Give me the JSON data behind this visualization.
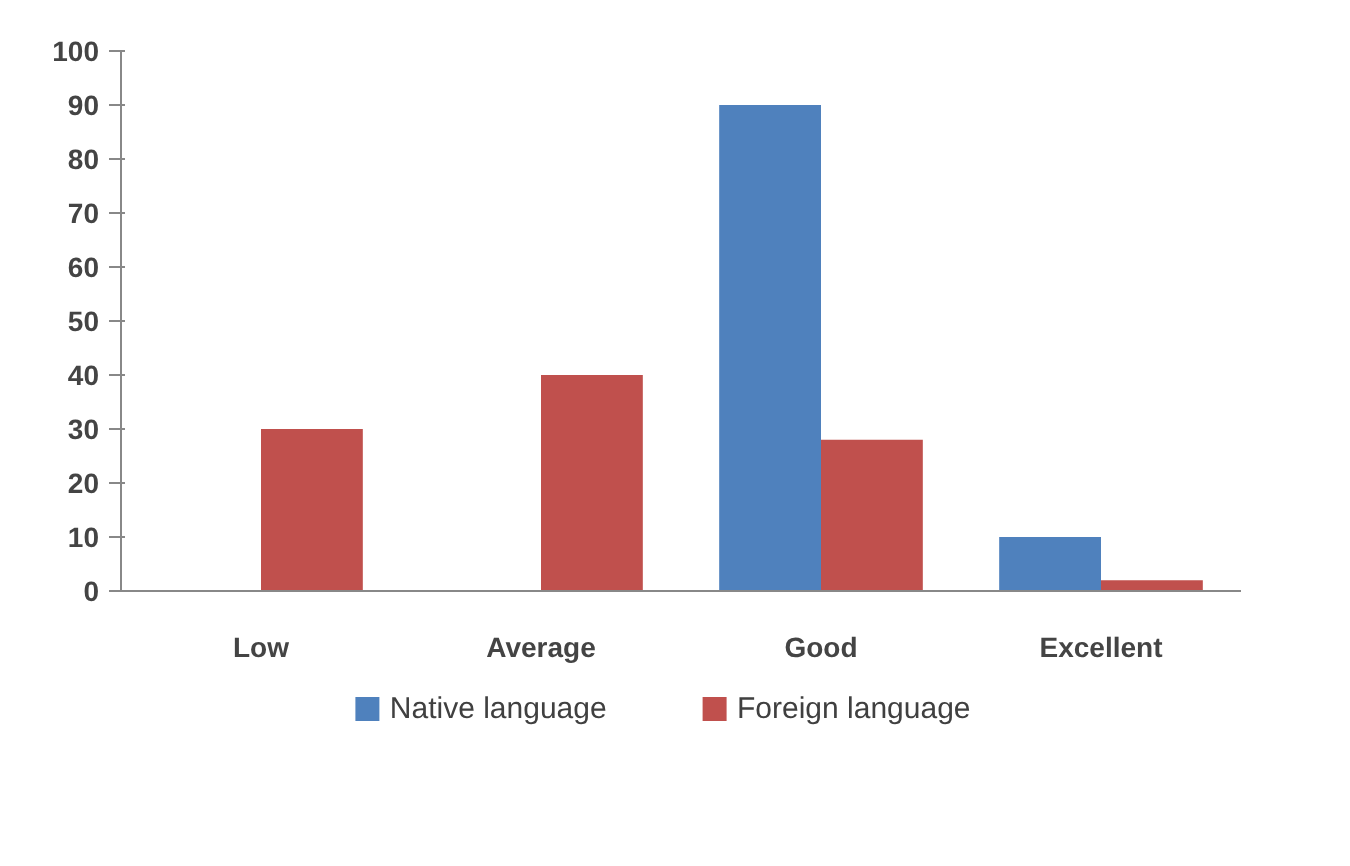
{
  "chart_data": {
    "type": "bar",
    "categories": [
      "Low",
      "Average",
      "Good",
      "Excellent"
    ],
    "series": [
      {
        "name": "Native language",
        "color": "#4f81bd",
        "values": [
          0,
          0,
          90,
          10
        ]
      },
      {
        "name": "Foreign language",
        "color": "#c0504d",
        "values": [
          30,
          40,
          28,
          2
        ]
      }
    ],
    "ylim": [
      0,
      100
    ],
    "yticks": [
      0,
      10,
      20,
      30,
      40,
      50,
      60,
      70,
      80,
      90,
      100
    ],
    "grid": false,
    "legend": "bottom"
  }
}
